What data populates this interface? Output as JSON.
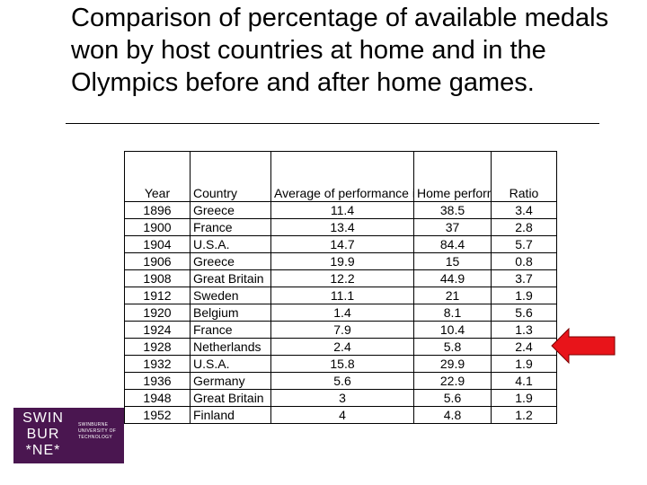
{
  "title": "Comparison of percentage of available medals won by host countries at home and in the Olympics before and after home games.",
  "table": {
    "headers": {
      "year": "Year",
      "country": "Country",
      "avg": "Average of performance in games before and after being host",
      "home": "Home performance",
      "ratio": "Ratio"
    },
    "rows": [
      {
        "year": "1896",
        "country": "Greece",
        "avg": "11.4",
        "home": "38.5",
        "ratio": "3.4"
      },
      {
        "year": "1900",
        "country": "France",
        "avg": "13.4",
        "home": "37",
        "ratio": "2.8"
      },
      {
        "year": "1904",
        "country": "U.S.A.",
        "avg": "14.7",
        "home": "84.4",
        "ratio": "5.7"
      },
      {
        "year": "1906",
        "country": "Greece",
        "avg": "19.9",
        "home": "15",
        "ratio": "0.8"
      },
      {
        "year": "1908",
        "country": "Great Britain",
        "avg": "12.2",
        "home": "44.9",
        "ratio": "3.7"
      },
      {
        "year": "1912",
        "country": "Sweden",
        "avg": "11.1",
        "home": "21",
        "ratio": "1.9"
      },
      {
        "year": "1920",
        "country": "Belgium",
        "avg": "1.4",
        "home": "8.1",
        "ratio": "5.6"
      },
      {
        "year": "1924",
        "country": "France",
        "avg": "7.9",
        "home": "10.4",
        "ratio": "1.3"
      },
      {
        "year": "1928",
        "country": "Netherlands",
        "avg": "2.4",
        "home": "5.8",
        "ratio": "2.4"
      },
      {
        "year": "1932",
        "country": "U.S.A.",
        "avg": "15.8",
        "home": "29.9",
        "ratio": "1.9"
      },
      {
        "year": "1936",
        "country": "Germany",
        "avg": "5.6",
        "home": "22.9",
        "ratio": "4.1"
      },
      {
        "year": "1948",
        "country": "Great Britain",
        "avg": "3",
        "home": "5.6",
        "ratio": "1.9"
      },
      {
        "year": "1952",
        "country": "Finland",
        "avg": "4",
        "home": "4.8",
        "ratio": "1.2"
      }
    ]
  },
  "arrow": {
    "icon": "left-arrow-icon",
    "color": "#e8141a",
    "points_to_year": "1928"
  },
  "logo": {
    "mark_lines": [
      "SWIN",
      "BUR",
      "*NE*"
    ],
    "name_lines": [
      "SWINBURNE",
      "UNIVERSITY OF",
      "TECHNOLOGY"
    ],
    "background": "#4a1650"
  }
}
